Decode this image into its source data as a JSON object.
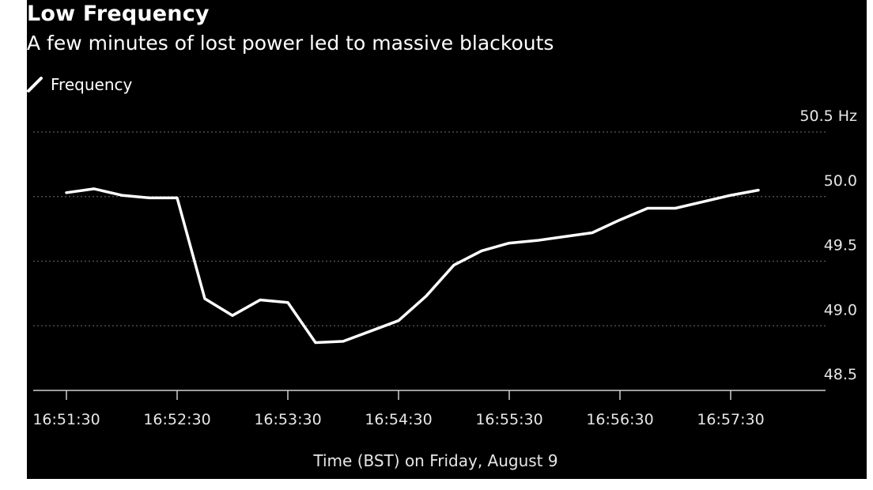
{
  "chart_data": {
    "type": "line",
    "title": "Low Frequency",
    "subtitle": "A few minutes of lost power led to massive blackouts",
    "xlabel": "Time (BST) on Friday, August 9",
    "ylabel": "",
    "ylim": [
      48.25,
      50.55
    ],
    "y_ticks": [
      48.5,
      49.0,
      49.5,
      50.0,
      50.5
    ],
    "y_tick_labels": [
      "48.5",
      "49.0",
      "49.5",
      "50.0",
      "50.5 Hz"
    ],
    "x_ticks": [
      "16:51:30",
      "16:52:30",
      "16:53:30",
      "16:54:30",
      "16:55:30",
      "16:56:30",
      "16:57:30"
    ],
    "x_tick_seconds": [
      0,
      60,
      120,
      180,
      240,
      300,
      360
    ],
    "grid": true,
    "legend": "top-left",
    "series": [
      {
        "name": "Frequency",
        "color": "#ffffff",
        "x": [
          0,
          15,
          30,
          45,
          60,
          75,
          90,
          105,
          120,
          135,
          150,
          165,
          180,
          195,
          210,
          225,
          240,
          255,
          270,
          285,
          300,
          315,
          330,
          345,
          360,
          375
        ],
        "values": [
          50.03,
          50.06,
          50.01,
          49.99,
          49.99,
          49.21,
          49.08,
          49.2,
          49.18,
          48.87,
          48.88,
          48.96,
          49.04,
          49.23,
          49.47,
          49.58,
          49.64,
          49.66,
          49.69,
          49.72,
          49.82,
          49.91,
          49.91,
          49.96,
          50.01,
          50.05
        ]
      }
    ]
  },
  "colors": {
    "background": "#000000",
    "line": "#ffffff",
    "grid": "#5a5a5a",
    "text": "#e6e6e6"
  }
}
